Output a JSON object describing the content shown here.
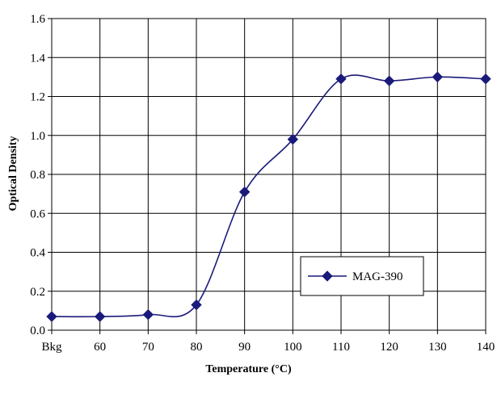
{
  "chart_data": {
    "type": "line",
    "xlabel": "Temperature (°C)",
    "ylabel": "Optical Density",
    "categories": [
      "Bkg",
      "60",
      "70",
      "80",
      "90",
      "100",
      "110",
      "120",
      "130",
      "140"
    ],
    "series": [
      {
        "name": "MAG-390",
        "values": [
          0.07,
          0.07,
          0.08,
          0.13,
          0.71,
          0.98,
          1.29,
          1.28,
          1.3,
          1.29
        ],
        "color": "#1a1a7a"
      }
    ],
    "ylim": [
      0,
      1.6
    ],
    "yticks": [
      "0.0",
      "0.2",
      "0.4",
      "0.6",
      "0.8",
      "1.0",
      "1.2",
      "1.4",
      "1.6"
    ],
    "grid": true,
    "legend": "inside-lower-right",
    "marker": "diamond"
  }
}
